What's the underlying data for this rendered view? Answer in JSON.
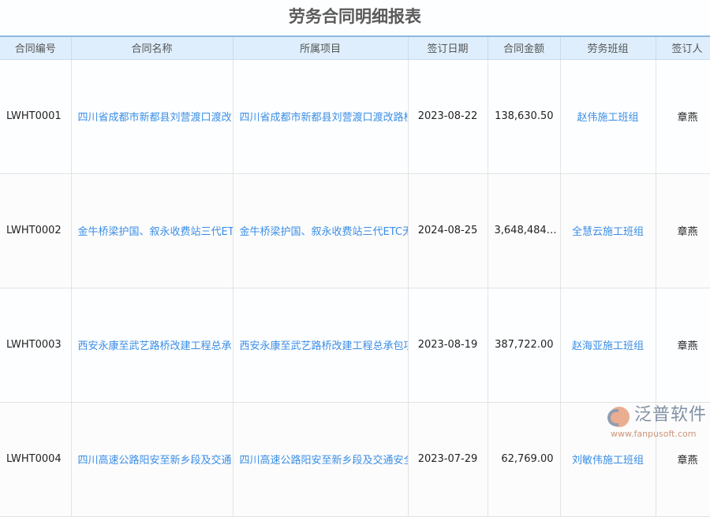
{
  "title": "劳务合同明细报表",
  "columns": [
    "合同编号",
    "合同名称",
    "所属项目",
    "签订日期",
    "合同金额",
    "劳务班组",
    "签订人"
  ],
  "rows": [
    {
      "code": "LWHT0001",
      "name": "四川省成都市新都县刘营渡口渡改",
      "project": "四川省成都市新都县刘营渡口渡改路桥",
      "date": "2023-08-22",
      "amount": "138,630.50",
      "team": "赵伟施工班组",
      "signer": "章燕"
    },
    {
      "code": "LWHT0002",
      "name": "金牛桥梁护国、叙永收费站三代ETC",
      "project": "金牛桥梁护国、叙永收费站三代ETC无",
      "date": "2024-08-25",
      "amount": "3,648,484…",
      "team": "全慧云施工班组",
      "signer": "章燕"
    },
    {
      "code": "LWHT0003",
      "name": "西安永康至武艺路桥改建工程总承",
      "project": "西安永康至武艺路桥改建工程总承包项",
      "date": "2023-08-19",
      "amount": "387,722.00",
      "team": "赵海亚施工班组",
      "signer": "章燕"
    },
    {
      "code": "LWHT0004",
      "name": "四川高速公路阳安至新乡段及交通",
      "project": "四川高速公路阳安至新乡段及交通安全",
      "date": "2023-07-29",
      "amount": "62,769.00",
      "team": "刘敏伟施工班组",
      "signer": "章燕"
    }
  ],
  "watermark": {
    "brand": "泛普软件",
    "url": "www.fanpusoft.com"
  }
}
